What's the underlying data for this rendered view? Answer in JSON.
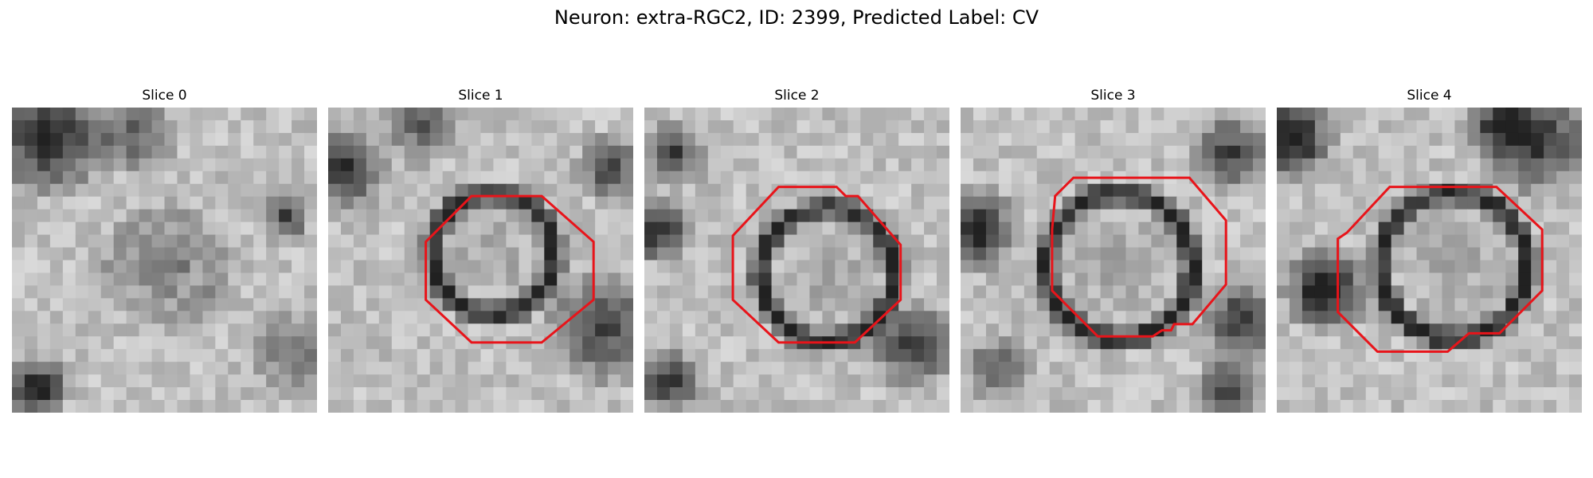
{
  "figure": {
    "title": "Neuron: extra-RGC2, ID: 2399, Predicted Label: CV"
  },
  "slices": [
    {
      "title": "Slice 0",
      "contour_shown": false,
      "cell_darkness": 0.35,
      "ring_darkness": 0.2
    },
    {
      "title": "Slice 1",
      "contour_shown": true,
      "cell_darkness": 0.1,
      "ring_darkness": 0.75
    },
    {
      "title": "Slice 2",
      "contour_shown": true,
      "cell_darkness": 0.1,
      "ring_darkness": 0.75
    },
    {
      "title": "Slice 3",
      "contour_shown": true,
      "cell_darkness": 0.1,
      "ring_darkness": 0.8
    },
    {
      "title": "Slice 4",
      "contour_shown": true,
      "cell_darkness": 0.1,
      "ring_darkness": 0.8
    }
  ],
  "style": {
    "contour_color": "#e8141a",
    "colormap": "grayscale"
  }
}
